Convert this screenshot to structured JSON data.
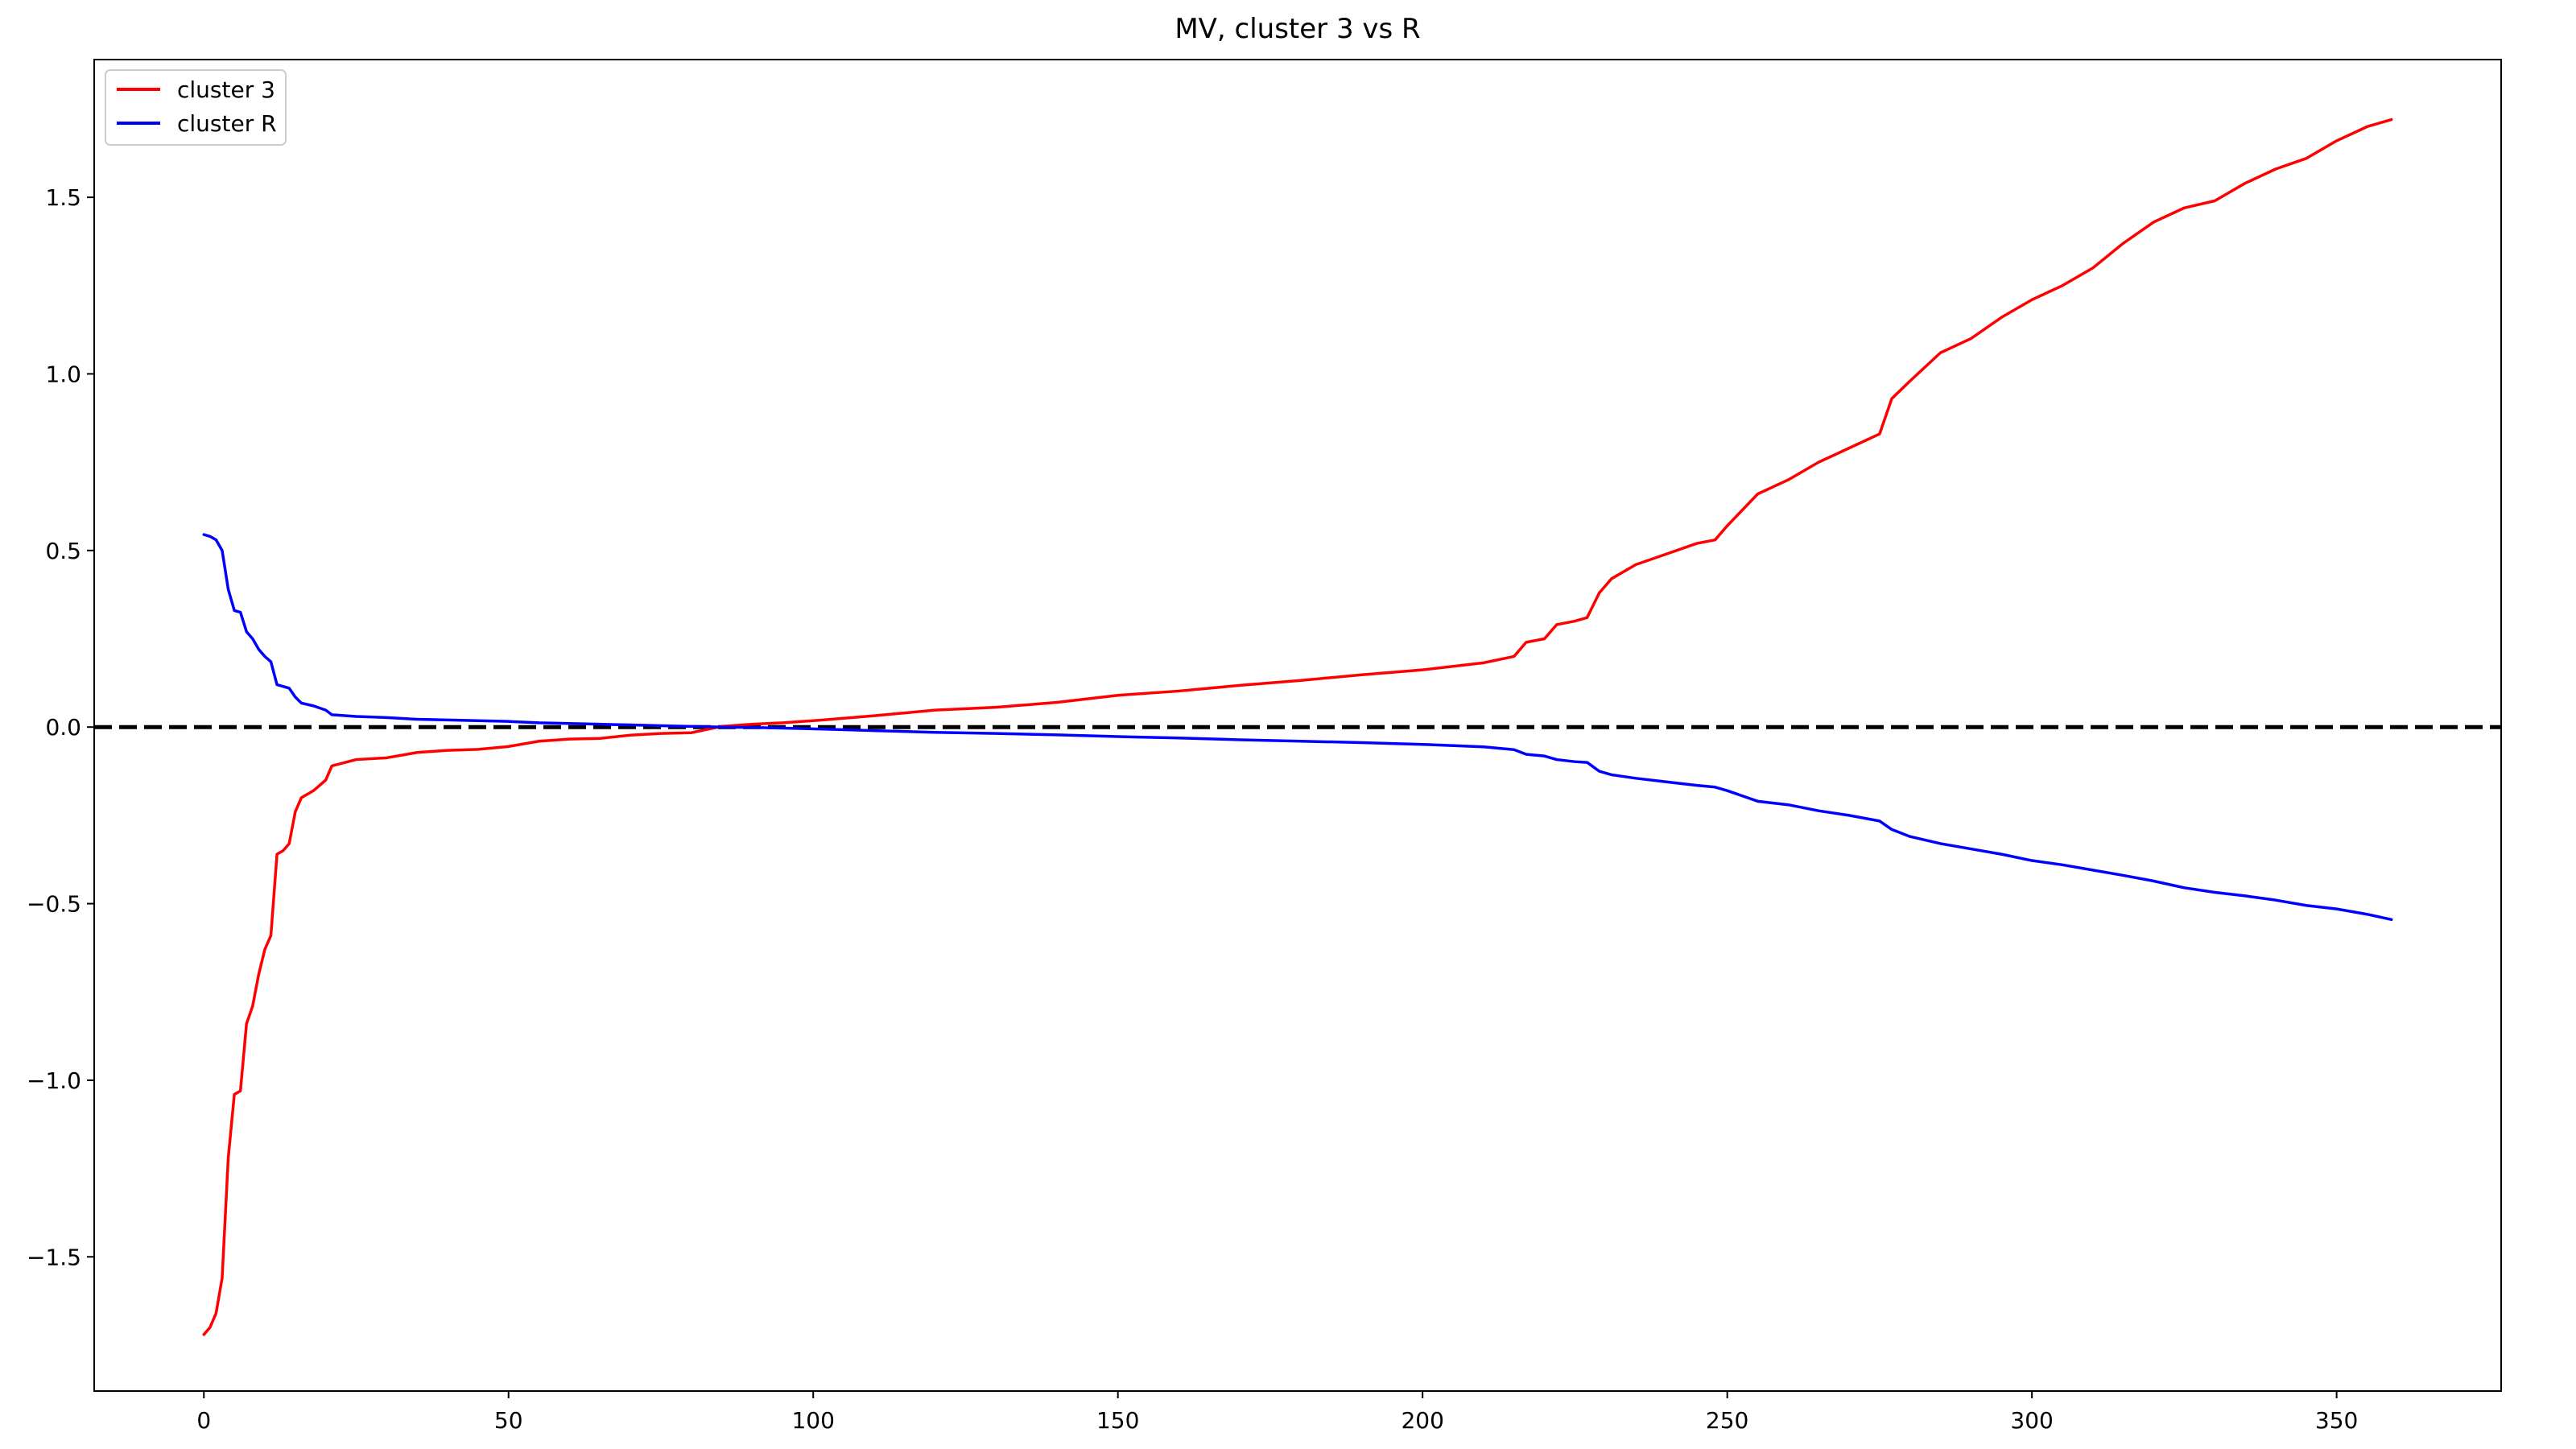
{
  "chart_data": {
    "type": "line",
    "title": "MV, cluster 3 vs R",
    "xlabel": "",
    "ylabel": "",
    "xlim": [
      -18,
      377
    ],
    "ylim": [
      -1.88,
      1.89
    ],
    "x_ticks": [
      0,
      50,
      100,
      150,
      200,
      250,
      300,
      350
    ],
    "x_tick_labels": [
      "0",
      "50",
      "100",
      "150",
      "200",
      "250",
      "300",
      "350"
    ],
    "y_ticks": [
      -1.5,
      -1.0,
      -0.5,
      0.0,
      0.5,
      1.0,
      1.5
    ],
    "y_tick_labels": [
      "−1.5",
      "−1.0",
      "−0.5",
      "0.0",
      "0.5",
      "1.0",
      "1.5"
    ],
    "grid": false,
    "legend": {
      "position": "upper-left"
    },
    "reference_line": {
      "y": 0.0,
      "style": "dashed",
      "color": "#000000"
    },
    "series": [
      {
        "name": "cluster 3",
        "color": "#ff0000",
        "x": [
          0,
          1,
          2,
          3,
          4,
          5,
          6,
          7,
          8,
          9,
          10,
          11,
          12,
          13,
          14,
          15,
          16,
          18,
          20,
          21,
          25,
          30,
          35,
          40,
          45,
          50,
          55,
          60,
          65,
          70,
          75,
          80,
          85,
          90,
          95,
          100,
          110,
          120,
          130,
          140,
          150,
          160,
          170,
          180,
          190,
          200,
          210,
          215,
          217,
          220,
          222,
          225,
          227,
          229,
          231,
          235,
          240,
          245,
          248,
          250,
          255,
          260,
          265,
          270,
          275,
          277,
          280,
          285,
          290,
          295,
          300,
          305,
          310,
          315,
          320,
          325,
          330,
          335,
          340,
          345,
          350,
          355,
          359
        ],
        "y": [
          -1.72,
          -1.7,
          -1.66,
          -1.56,
          -1.22,
          -1.04,
          -1.03,
          -0.84,
          -0.79,
          -0.7,
          -0.63,
          -0.59,
          -0.36,
          -0.35,
          -0.33,
          -0.24,
          -0.2,
          -0.18,
          -0.15,
          -0.11,
          -0.092,
          -0.087,
          -0.072,
          -0.066,
          -0.063,
          -0.055,
          -0.04,
          -0.034,
          -0.032,
          -0.023,
          -0.018,
          -0.016,
          0.002,
          0.008,
          0.012,
          0.018,
          0.032,
          0.048,
          0.056,
          0.07,
          0.09,
          0.102,
          0.118,
          0.132,
          0.148,
          0.162,
          0.182,
          0.2,
          0.24,
          0.25,
          0.29,
          0.3,
          0.31,
          0.38,
          0.42,
          0.46,
          0.49,
          0.52,
          0.53,
          0.57,
          0.66,
          0.7,
          0.75,
          0.79,
          0.83,
          0.93,
          0.98,
          1.06,
          1.1,
          1.16,
          1.21,
          1.25,
          1.3,
          1.37,
          1.43,
          1.47,
          1.49,
          1.54,
          1.58,
          1.61,
          1.66,
          1.7,
          1.72
        ]
      },
      {
        "name": "cluster R",
        "color": "#0000ff",
        "x": [
          0,
          1,
          2,
          3,
          4,
          5,
          6,
          7,
          8,
          9,
          10,
          11,
          12,
          13,
          14,
          15,
          16,
          18,
          20,
          21,
          25,
          30,
          35,
          40,
          45,
          50,
          55,
          60,
          65,
          70,
          75,
          80,
          85,
          90,
          95,
          100,
          110,
          120,
          130,
          140,
          150,
          160,
          170,
          180,
          190,
          200,
          210,
          215,
          217,
          220,
          222,
          225,
          227,
          229,
          231,
          235,
          240,
          245,
          248,
          250,
          255,
          260,
          265,
          270,
          275,
          277,
          280,
          285,
          290,
          295,
          300,
          305,
          310,
          315,
          320,
          325,
          330,
          335,
          340,
          345,
          350,
          355,
          359
        ],
        "y": [
          0.545,
          0.54,
          0.53,
          0.5,
          0.39,
          0.33,
          0.325,
          0.27,
          0.25,
          0.22,
          0.2,
          0.185,
          0.12,
          0.115,
          0.11,
          0.085,
          0.068,
          0.06,
          0.048,
          0.035,
          0.03,
          0.027,
          0.022,
          0.02,
          0.018,
          0.016,
          0.012,
          0.01,
          0.008,
          0.006,
          0.004,
          0.002,
          0.0,
          -0.001,
          -0.003,
          -0.005,
          -0.01,
          -0.015,
          -0.018,
          -0.022,
          -0.027,
          -0.031,
          -0.036,
          -0.04,
          -0.044,
          -0.049,
          -0.056,
          -0.064,
          -0.077,
          -0.082,
          -0.092,
          -0.098,
          -0.1,
          -0.125,
          -0.135,
          -0.145,
          -0.155,
          -0.165,
          -0.17,
          -0.18,
          -0.21,
          -0.22,
          -0.237,
          -0.25,
          -0.266,
          -0.29,
          -0.31,
          -0.33,
          -0.345,
          -0.36,
          -0.378,
          -0.39,
          -0.405,
          -0.42,
          -0.436,
          -0.455,
          -0.468,
          -0.478,
          -0.49,
          -0.505,
          -0.515,
          -0.53,
          -0.545
        ]
      }
    ]
  }
}
